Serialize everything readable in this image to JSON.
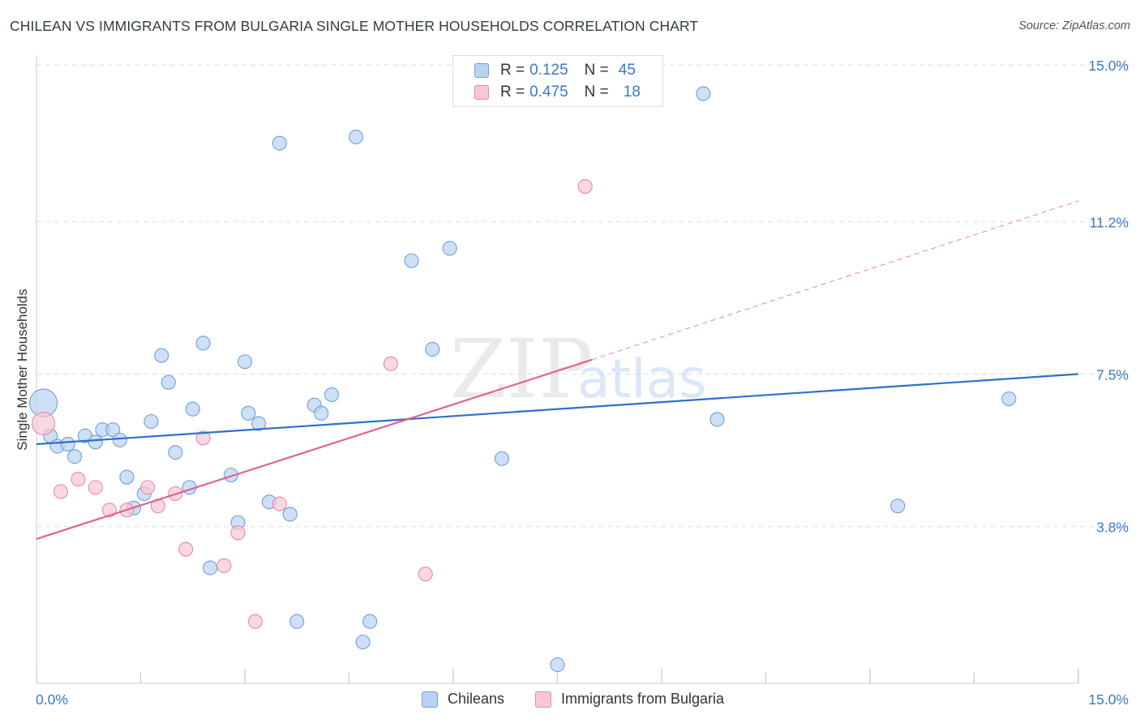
{
  "header": {
    "title": "CHILEAN VS IMMIGRANTS FROM BULGARIA SINGLE MOTHER HOUSEHOLDS CORRELATION CHART",
    "source": "Source: ZipAtlas.com"
  },
  "watermark": {
    "zip": "ZIP",
    "atlas": "atlas"
  },
  "legend": {
    "rows": [
      {
        "r_label": "R =",
        "r_value": "0.125",
        "n_label": "N =",
        "n_value": "45"
      },
      {
        "r_label": "R =",
        "r_value": "0.475",
        "n_label": "N =",
        "n_value": "18"
      }
    ]
  },
  "colors": {
    "chileans_fill": "#b9d3f3",
    "chileans_stroke": "#6f9fd8",
    "chileans_line": "#2f6fcc",
    "bulgaria_fill": "#f9c6d6",
    "bulgaria_stroke": "#e58aa8",
    "bulgaria_line": "#e0648f",
    "tick_label": "#3a78c9",
    "grid": "#dedede"
  },
  "chart_data": {
    "type": "scatter",
    "title": "CHILEAN VS IMMIGRANTS FROM BULGARIA SINGLE MOTHER HOUSEHOLDS CORRELATION CHART",
    "xlabel": "",
    "ylabel": "Single Mother Households",
    "xlim": [
      0,
      15
    ],
    "ylim": [
      0,
      15
    ],
    "x_tick_labels": [
      "0.0%",
      "15.0%"
    ],
    "y_ticks": [
      3.8,
      7.5,
      11.2,
      15.0
    ],
    "y_tick_labels": [
      "3.8%",
      "7.5%",
      "11.2%",
      "15.0%"
    ],
    "grid": true,
    "legend_position": "top-center",
    "series": [
      {
        "name": "Chileans",
        "r": 0.125,
        "n": 45,
        "trend": {
          "x": [
            0,
            15
          ],
          "y": [
            5.8,
            7.5
          ]
        },
        "points": [
          {
            "x": 0.1,
            "y": 6.8,
            "s": "xl"
          },
          {
            "x": 0.2,
            "y": 6.0
          },
          {
            "x": 0.3,
            "y": 5.75
          },
          {
            "x": 0.45,
            "y": 5.8
          },
          {
            "x": 0.55,
            "y": 5.5
          },
          {
            "x": 0.7,
            "y": 6.0
          },
          {
            "x": 0.85,
            "y": 5.85
          },
          {
            "x": 0.95,
            "y": 6.15
          },
          {
            "x": 1.1,
            "y": 6.15
          },
          {
            "x": 1.2,
            "y": 5.9
          },
          {
            "x": 1.3,
            "y": 5.0
          },
          {
            "x": 1.4,
            "y": 4.25
          },
          {
            "x": 1.55,
            "y": 4.6
          },
          {
            "x": 1.65,
            "y": 6.35
          },
          {
            "x": 1.8,
            "y": 7.95
          },
          {
            "x": 1.9,
            "y": 7.3
          },
          {
            "x": 2.0,
            "y": 5.6
          },
          {
            "x": 2.2,
            "y": 4.75
          },
          {
            "x": 2.25,
            "y": 6.65
          },
          {
            "x": 2.4,
            "y": 8.25
          },
          {
            "x": 2.5,
            "y": 2.8
          },
          {
            "x": 2.8,
            "y": 5.05
          },
          {
            "x": 2.9,
            "y": 3.9
          },
          {
            "x": 3.0,
            "y": 7.8
          },
          {
            "x": 3.05,
            "y": 6.55
          },
          {
            "x": 3.2,
            "y": 6.3
          },
          {
            "x": 3.35,
            "y": 4.4
          },
          {
            "x": 3.5,
            "y": 13.1
          },
          {
            "x": 3.65,
            "y": 4.1
          },
          {
            "x": 3.75,
            "y": 1.5
          },
          {
            "x": 4.0,
            "y": 6.75
          },
          {
            "x": 4.1,
            "y": 6.55
          },
          {
            "x": 4.25,
            "y": 7.0
          },
          {
            "x": 4.6,
            "y": 13.25
          },
          {
            "x": 4.7,
            "y": 1.0
          },
          {
            "x": 4.8,
            "y": 1.5
          },
          {
            "x": 5.4,
            "y": 10.25
          },
          {
            "x": 5.7,
            "y": 8.1
          },
          {
            "x": 5.95,
            "y": 10.55
          },
          {
            "x": 6.7,
            "y": 5.45
          },
          {
            "x": 7.5,
            "y": 0.45
          },
          {
            "x": 9.6,
            "y": 14.3
          },
          {
            "x": 9.8,
            "y": 6.4
          },
          {
            "x": 12.4,
            "y": 4.3
          },
          {
            "x": 14.0,
            "y": 6.9
          }
        ]
      },
      {
        "name": "Immigrants from Bulgaria",
        "r": 0.475,
        "n": 18,
        "trend": {
          "x": [
            0,
            8.0
          ],
          "y": [
            3.5,
            7.85
          ]
        },
        "trend_dashed": {
          "x": [
            8.0,
            15
          ],
          "y": [
            7.85,
            11.7
          ]
        },
        "points": [
          {
            "x": 0.1,
            "y": 6.3,
            "s": "lg"
          },
          {
            "x": 0.35,
            "y": 4.65
          },
          {
            "x": 0.6,
            "y": 4.95
          },
          {
            "x": 0.85,
            "y": 4.75
          },
          {
            "x": 1.05,
            "y": 4.2
          },
          {
            "x": 1.3,
            "y": 4.2
          },
          {
            "x": 1.6,
            "y": 4.75
          },
          {
            "x": 1.75,
            "y": 4.3
          },
          {
            "x": 2.0,
            "y": 4.6
          },
          {
            "x": 2.15,
            "y": 3.25
          },
          {
            "x": 2.4,
            "y": 5.95
          },
          {
            "x": 2.7,
            "y": 2.85
          },
          {
            "x": 2.9,
            "y": 3.65
          },
          {
            "x": 3.15,
            "y": 1.5
          },
          {
            "x": 3.5,
            "y": 4.35
          },
          {
            "x": 5.1,
            "y": 7.75
          },
          {
            "x": 5.6,
            "y": 2.65
          },
          {
            "x": 7.9,
            "y": 12.05
          }
        ]
      }
    ]
  },
  "bottom_legend": {
    "items": [
      "Chileans",
      "Immigrants from Bulgaria"
    ]
  }
}
